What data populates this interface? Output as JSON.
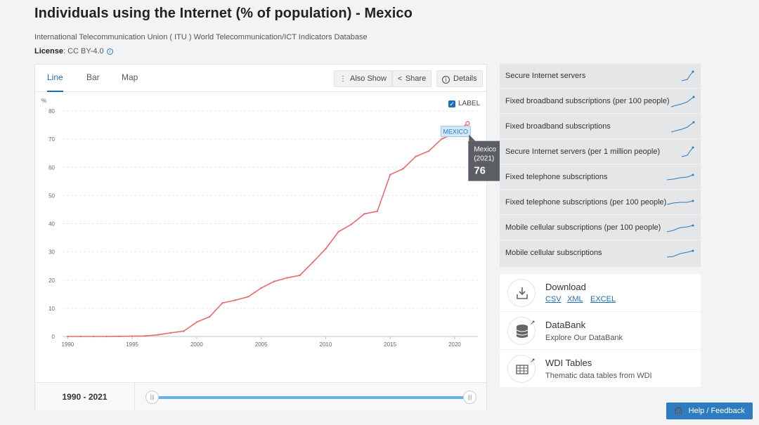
{
  "page": {
    "title": "Individuals using the Internet (% of population) - Mexico",
    "source": "International Telecommunication Union ( ITU ) World Telecommunication/ICT Indicators Database",
    "license_label": "License",
    "license_value": ": CC BY-4.0"
  },
  "tabs": {
    "line": "Line",
    "bar": "Bar",
    "map": "Map"
  },
  "toolbar": {
    "also_show": "Also Show",
    "share": "Share",
    "details": "Details"
  },
  "chart_options": {
    "label_toggle": "LABEL",
    "label_checked": true
  },
  "chart_data": {
    "type": "line",
    "title": "Individuals using the Internet (% of population) - Mexico",
    "ylabel": "%",
    "xlabel": "",
    "ylim": [
      0,
      80
    ],
    "yticks": [
      0,
      10,
      20,
      30,
      40,
      50,
      60,
      70,
      80
    ],
    "xticks": [
      1990,
      1995,
      2000,
      2005,
      2010,
      2015,
      2020
    ],
    "series": [
      {
        "name": "Mexico",
        "label": "MEXICO",
        "color": "#e86a6c",
        "x": [
          1990,
          1991,
          1992,
          1993,
          1994,
          1995,
          1996,
          1997,
          1998,
          1999,
          2000,
          2001,
          2002,
          2003,
          2004,
          2005,
          2006,
          2007,
          2008,
          2009,
          2010,
          2011,
          2012,
          2013,
          2014,
          2015,
          2016,
          2017,
          2018,
          2019,
          2020,
          2021
        ],
        "values": [
          0,
          0,
          0,
          0,
          0.04,
          0.1,
          0.19,
          0.6,
          1.3,
          1.9,
          5.1,
          7.0,
          11.9,
          12.9,
          14.1,
          17.2,
          19.5,
          20.8,
          21.7,
          26.3,
          31.1,
          37.2,
          39.8,
          43.5,
          44.4,
          57.4,
          59.5,
          63.9,
          65.8,
          70.1,
          72.0,
          75.6
        ]
      }
    ],
    "tooltip": {
      "country": "Mexico",
      "year": "(2021)",
      "value": "76"
    }
  },
  "range": {
    "label": "1990 - 2021"
  },
  "indicators": [
    {
      "label": "Secure Internet servers"
    },
    {
      "label": "Fixed broadband subscriptions (per 100 people)"
    },
    {
      "label": "Fixed broadband subscriptions"
    },
    {
      "label": "Secure Internet servers (per 1 million people)"
    },
    {
      "label": "Fixed telephone subscriptions"
    },
    {
      "label": "Fixed telephone subscriptions (per 100 people)"
    },
    {
      "label": "Mobile cellular subscriptions (per 100 people)"
    },
    {
      "label": "Mobile cellular subscriptions"
    }
  ],
  "resources": {
    "download": {
      "title": "Download",
      "csv": "CSV",
      "xml": "XML",
      "excel": "EXCEL"
    },
    "databank": {
      "title": "DataBank",
      "subtitle": "Explore Our DataBank"
    },
    "wdi": {
      "title": "WDI Tables",
      "subtitle": "Thematic data tables from WDI"
    }
  },
  "help": {
    "label": "Help / Feedback"
  }
}
